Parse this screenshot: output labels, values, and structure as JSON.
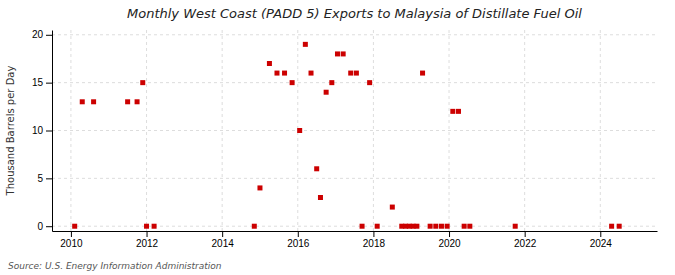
{
  "chart_data": {
    "type": "scatter",
    "title": "Monthly West Coast (PADD 5) Exports to Malaysia of Distillate Fuel Oil",
    "ylabel": "Thousand Barrels per Day",
    "annotations": [
      "Source: U.S. Energy Information Administration"
    ],
    "color": "#cc0000",
    "marker": "square",
    "grid": true,
    "xlim": [
      2009.5,
      2025.5
    ],
    "ylim": [
      -0.5,
      20.5
    ],
    "xticks": [
      2010,
      2012,
      2014,
      2016,
      2018,
      2020,
      2022,
      2024
    ],
    "yticks": [
      0,
      5,
      10,
      15,
      20
    ],
    "x": [
      2010.1,
      2010.3,
      2010.6,
      2011.5,
      2011.75,
      2011.9,
      2012.0,
      2012.2,
      2014.85,
      2015.0,
      2015.25,
      2015.45,
      2015.65,
      2015.85,
      2016.05,
      2016.2,
      2016.35,
      2016.5,
      2016.6,
      2016.75,
      2016.9,
      2017.05,
      2017.2,
      2017.4,
      2017.55,
      2017.7,
      2017.9,
      2018.1,
      2018.5,
      2018.75,
      2018.85,
      2018.95,
      2019.05,
      2019.15,
      2019.3,
      2019.5,
      2019.65,
      2019.8,
      2019.95,
      2020.1,
      2020.25,
      2020.4,
      2020.55,
      2021.75,
      2024.3,
      2024.5
    ],
    "values": [
      0,
      13,
      13,
      13,
      13,
      15,
      0,
      0,
      0,
      4,
      17,
      16,
      16,
      15,
      10,
      19,
      16,
      6,
      3,
      14,
      15,
      18,
      18,
      16,
      16,
      0,
      15,
      0,
      2,
      0,
      0,
      0,
      0,
      0,
      16,
      0,
      0,
      0,
      0,
      12,
      12,
      0,
      0,
      0,
      0,
      0
    ]
  }
}
